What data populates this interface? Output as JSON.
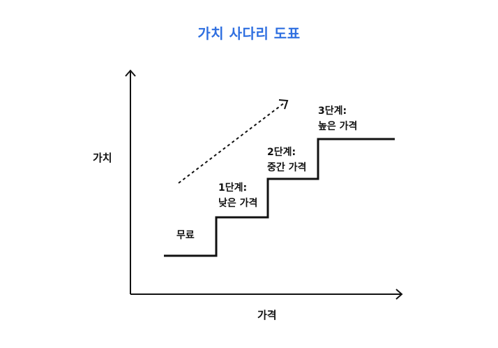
{
  "title": "가치 사다리 도표",
  "axes": {
    "y_label": "가치",
    "x_label": "가격"
  },
  "steps": [
    {
      "line1": "무료",
      "line2": ""
    },
    {
      "line1": "1단계:",
      "line2": "낮은 가격"
    },
    {
      "line1": "2단계:",
      "line2": "중간 가격"
    },
    {
      "line1": "3단계:",
      "line2": "높은 가격"
    }
  ],
  "colors": {
    "title": "#2f6fe0",
    "ink": "#111111"
  }
}
